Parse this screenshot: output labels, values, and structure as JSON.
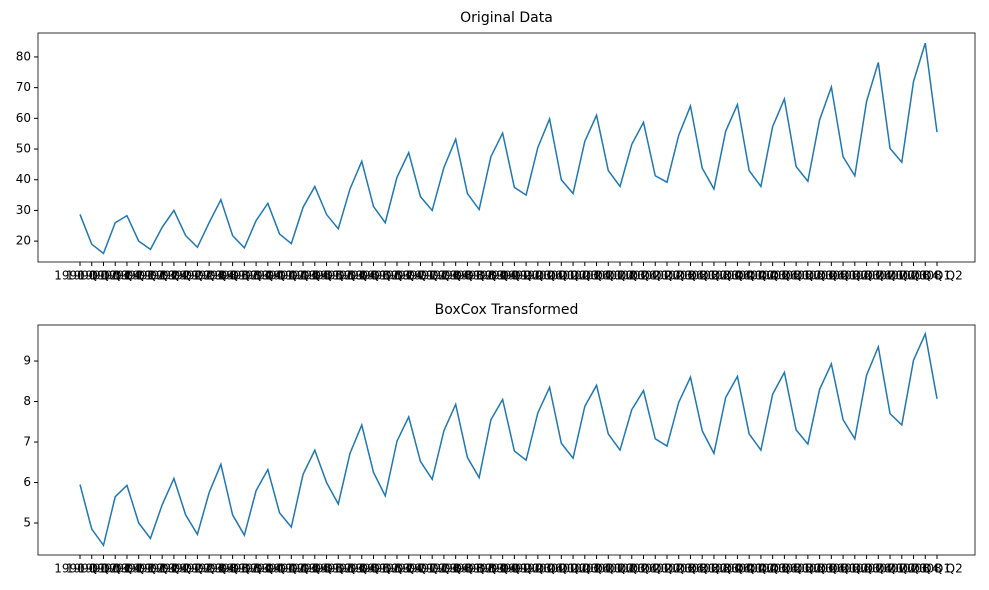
{
  "chart_data": [
    {
      "type": "line",
      "title": "Original Data",
      "categories": [
        "1990 Q1",
        "1990 Q2",
        "1990 Q3",
        "1990 Q4",
        "1991 Q1",
        "1991 Q2",
        "1991 Q3",
        "1991 Q4",
        "1992 Q1",
        "1992 Q2",
        "1992 Q3",
        "1992 Q4",
        "1993 Q1",
        "1993 Q2",
        "1993 Q3",
        "1993 Q4",
        "1994 Q1",
        "1994 Q2",
        "1994 Q3",
        "1994 Q4",
        "1995 Q1",
        "1995 Q2",
        "1995 Q3",
        "1995 Q4",
        "1996 Q1",
        "1996 Q2",
        "1996 Q3",
        "1996 Q4",
        "1997 Q1",
        "1997 Q2",
        "1997 Q3",
        "1997 Q4",
        "1998 Q1",
        "1998 Q2",
        "1998 Q3",
        "1998 Q4",
        "1999 Q1",
        "1999 Q2",
        "1999 Q3",
        "1999 Q4",
        "2000 Q1",
        "2000 Q2",
        "2000 Q3",
        "2000 Q4",
        "2001 Q1",
        "2001 Q2",
        "2001 Q3",
        "2001 Q4",
        "2002 Q1",
        "2002 Q2",
        "2002 Q3",
        "2002 Q4",
        "2003 Q1",
        "2003 Q2",
        "2003 Q3",
        "2003 Q4",
        "2004 Q1",
        "2004 Q2",
        "2004 Q3",
        "2004 Q4",
        "2005 Q1",
        "2005 Q2",
        "2005 Q3",
        "2005 Q4",
        "2006 Q1",
        "2006 Q2",
        "2006 Q3",
        "2006 Q4",
        "2007 Q1",
        "2007 Q2",
        "2007 Q3",
        "2007 Q4",
        "2008 Q1",
        "2008 Q2"
      ],
      "series": [
        {
          "name": "Original",
          "color": "#1f77b4",
          "values": [
            28.7,
            19,
            16,
            26,
            28.3,
            20,
            17.3,
            24.5,
            30,
            21.8,
            18,
            26,
            33.5,
            21.8,
            17.8,
            26.7,
            32.3,
            22.3,
            19.2,
            31,
            37.8,
            28.7,
            24,
            37,
            46,
            31.3,
            26,
            40.8,
            48.8,
            34.5,
            30,
            44,
            53.2,
            35.5,
            30.3,
            47.5,
            55.2,
            37.5,
            35,
            50.5,
            59.8,
            40,
            35.5,
            52.5,
            61,
            43,
            37.8,
            51.5,
            58.7,
            41.3,
            39.2,
            54.5,
            64,
            43.8,
            37,
            55.8,
            64.5,
            43,
            37.8,
            57.3,
            66.3,
            44.3,
            39.5,
            59.5,
            70.2,
            47.5,
            41.3,
            65.5,
            78.2,
            50.2,
            45.7,
            72,
            84.5,
            55.5
          ]
        }
      ],
      "ylim": [
        13.2,
        87.8
      ],
      "yticks": [
        20,
        30,
        40,
        50,
        60,
        70,
        80
      ]
    },
    {
      "type": "line",
      "title": "BoxCox Transformed",
      "categories": [
        "1990 Q1",
        "1990 Q2",
        "1990 Q3",
        "1990 Q4",
        "1991 Q1",
        "1991 Q2",
        "1991 Q3",
        "1991 Q4",
        "1992 Q1",
        "1992 Q2",
        "1992 Q3",
        "1992 Q4",
        "1993 Q1",
        "1993 Q2",
        "1993 Q3",
        "1993 Q4",
        "1994 Q1",
        "1994 Q2",
        "1994 Q3",
        "1994 Q4",
        "1995 Q1",
        "1995 Q2",
        "1995 Q3",
        "1995 Q4",
        "1996 Q1",
        "1996 Q2",
        "1996 Q3",
        "1996 Q4",
        "1997 Q1",
        "1997 Q2",
        "1997 Q3",
        "1997 Q4",
        "1998 Q1",
        "1998 Q2",
        "1998 Q3",
        "1998 Q4",
        "1999 Q1",
        "1999 Q2",
        "1999 Q3",
        "1999 Q4",
        "2000 Q1",
        "2000 Q2",
        "2000 Q3",
        "2000 Q4",
        "2001 Q1",
        "2001 Q2",
        "2001 Q3",
        "2001 Q4",
        "2002 Q1",
        "2002 Q2",
        "2002 Q3",
        "2002 Q4",
        "2003 Q1",
        "2003 Q2",
        "2003 Q3",
        "2003 Q4",
        "2004 Q1",
        "2004 Q2",
        "2004 Q3",
        "2004 Q4",
        "2005 Q1",
        "2005 Q2",
        "2005 Q3",
        "2005 Q4",
        "2006 Q1",
        "2006 Q2",
        "2006 Q3",
        "2006 Q4",
        "2007 Q1",
        "2007 Q2",
        "2007 Q3",
        "2007 Q4",
        "2008 Q1",
        "2008 Q2"
      ],
      "series": [
        {
          "name": "BoxCox",
          "color": "#1f77b4",
          "values": [
            5.95,
            4.85,
            4.45,
            5.65,
            5.93,
            5.0,
            4.62,
            5.45,
            6.1,
            5.2,
            4.72,
            5.75,
            6.45,
            5.2,
            4.7,
            5.8,
            6.32,
            5.25,
            4.9,
            6.2,
            6.8,
            6.0,
            5.47,
            6.72,
            7.42,
            6.25,
            5.67,
            7.02,
            7.62,
            6.52,
            6.08,
            7.28,
            7.93,
            6.62,
            6.12,
            7.55,
            8.05,
            6.78,
            6.55,
            7.72,
            8.35,
            6.97,
            6.6,
            7.88,
            8.4,
            7.2,
            6.8,
            7.8,
            8.27,
            7.08,
            6.9,
            7.98,
            8.6,
            7.28,
            6.72,
            8.1,
            8.62,
            7.2,
            6.8,
            8.18,
            8.72,
            7.3,
            6.95,
            8.3,
            8.93,
            7.55,
            7.08,
            8.65,
            9.35,
            7.7,
            7.42,
            9.02,
            9.67,
            8.07
          ]
        }
      ],
      "ylim": [
        4.21,
        9.89
      ],
      "yticks": [
        5,
        6,
        7,
        8,
        9
      ]
    }
  ]
}
